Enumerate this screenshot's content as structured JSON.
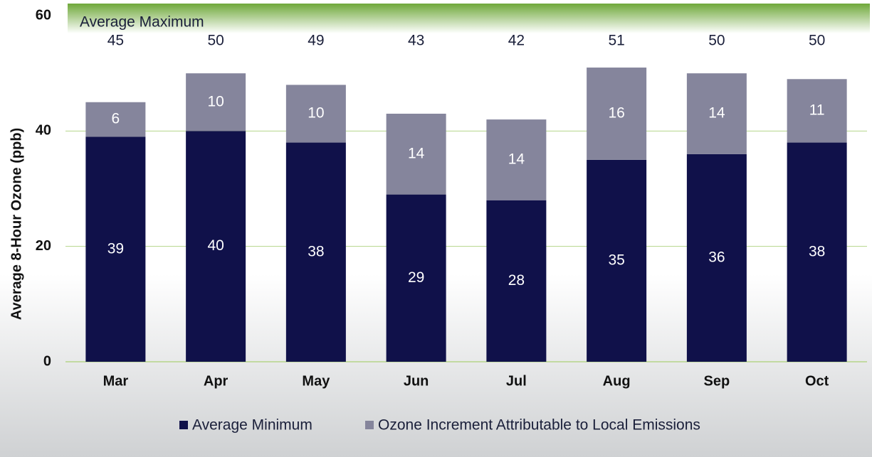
{
  "chart_data": {
    "type": "stacked_bar",
    "y_label": "Average 8-Hour Ozone (ppb)",
    "categories": [
      "Mar",
      "Apr",
      "May",
      "Jun",
      "Jul",
      "Aug",
      "Sep",
      "Oct"
    ],
    "series": [
      {
        "name": "Average Minimum",
        "color": "#10114a",
        "values": [
          39,
          40,
          38,
          29,
          28,
          35,
          36,
          38
        ]
      },
      {
        "name": "Ozone Increment Attributable to Local Emissions",
        "color": "#85859c",
        "values": [
          6,
          10,
          10,
          14,
          14,
          16,
          14,
          11
        ]
      }
    ],
    "totals": {
      "label": "Average Maximum",
      "values": [
        45,
        50,
        49,
        43,
        42,
        51,
        50,
        50
      ]
    },
    "ylim": [
      0,
      60
    ],
    "yticks": [
      0,
      20,
      40,
      60
    ],
    "grid": true
  }
}
